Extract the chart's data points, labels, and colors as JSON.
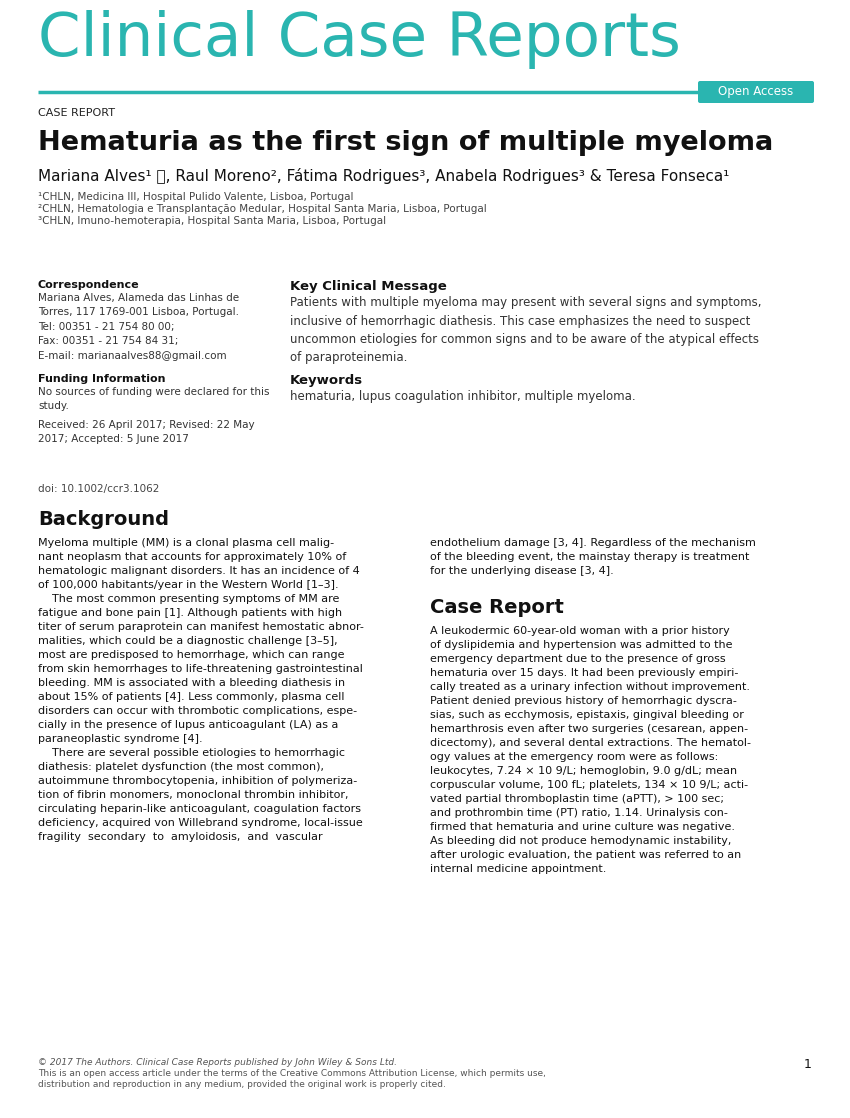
{
  "bg_color": "#ffffff",
  "teal_color": "#2ab5b0",
  "journal_title": "Clinical Case Reports",
  "case_report_label": "CASE REPORT",
  "article_title": "Hematuria as the first sign of multiple myeloma",
  "authors": "Mariana Alves¹ ⓘ, Raul Moreno², Fátima Rodrigues³, Anabela Rodrigues³ & Teresa Fonseca¹",
  "affil1": "¹CHLN, Medicina III, Hospital Pulido Valente, Lisboa, Portugal",
  "affil2": "²CHLN, Hematologia e Transplantação Medular, Hospital Santa Maria, Lisboa, Portugal",
  "affil3": "³CHLN, Imuno-hemoterapia, Hospital Santa Maria, Lisboa, Portugal",
  "corr_title": "Correspondence",
  "corr_body": "Mariana Alves, Alameda das Linhas de\nTorres, 117 1769-001 Lisboa, Portugal.\nTel: 00351 - 21 754 80 00;\nFax: 00351 - 21 754 84 31;\nE-mail: marianaalves88@gmail.com",
  "funding_title": "Funding Information",
  "funding_body": "No sources of funding were declared for this\nstudy.",
  "received_body": "Received: 26 April 2017; Revised: 22 May\n2017; Accepted: 5 June 2017",
  "key_msg_title": "Key Clinical Message",
  "key_msg_body": "Patients with multiple myeloma may present with several signs and symptoms,\ninclusive of hemorrhagic diathesis. This case emphasizes the need to suspect\nuncommon etiologies for common signs and to be aware of the atypical effects\nof paraproteinemia.",
  "keywords_title": "Keywords",
  "keywords_body": "hematuria, lupus coagulation inhibitor, multiple myeloma.",
  "doi_text": "doi: 10.1002/ccr3.1062",
  "bg_title": "Background",
  "bg_col1": "Myeloma multiple (MM) is a clonal plasma cell malig-\nnant neoplasm that accounts for approximately 10% of\nhematologic malignant disorders. It has an incidence of 4\nof 100,000 habitants/year in the Western World [1–3].\n    The most common presenting symptoms of MM are\nfatigue and bone pain [1]. Although patients with high\ntiter of serum paraprotein can manifest hemostatic abnor-\nmalities, which could be a diagnostic challenge [3–5],\nmost are predisposed to hemorrhage, which can range\nfrom skin hemorrhages to life-threatening gastrointestinal\nbleeding. MM is associated with a bleeding diathesis in\nabout 15% of patients [4]. Less commonly, plasma cell\ndisorders can occur with thrombotic complications, espe-\ncially in the presence of lupus anticoagulant (LA) as a\nparaneoplastic syndrome [4].\n    There are several possible etiologies to hemorrhagic\ndiathesis: platelet dysfunction (the most common),\nautoimmune thrombocytopenia, inhibition of polymeriza-\ntion of fibrin monomers, monoclonal thrombin inhibitor,\ncirculating heparin-like anticoagulant, coagulation factors\ndeficiency, acquired von Willebrand syndrome, local-issue\nfragility  secondary  to  amyloidosis,  and  vascular",
  "bg_col2_top": "endothelium damage [3, 4]. Regardless of the mechanism\nof the bleeding event, the mainstay therapy is treatment\nfor the underlying disease [3, 4].",
  "cr_title": "Case Report",
  "cr_body": "A leukodermic 60-year-old woman with a prior history\nof dyslipidemia and hypertension was admitted to the\nemergency department due to the presence of gross\nhematuria over 15 days. It had been previously empiri-\ncally treated as a urinary infection without improvement.\nPatient denied previous history of hemorrhagic dyscra-\nsias, such as ecchymosis, epistaxis, gingival bleeding or\nhemarthrosis even after two surgeries (cesarean, appen-\ndicectomy), and several dental extractions. The hematol-\nogy values at the emergency room were as follows:\nleukocytes, 7.24 × 10 9/L; hemoglobin, 9.0 g/dL; mean\ncorpuscular volume, 100 fL; platelets, 134 × 10 9/L; acti-\nvated partial thromboplastin time (aPTT), > 100 sec;\nand prothrombin time (PT) ratio, 1.14. Urinalysis con-\nfirmed that hematuria and urine culture was negative.\nAs bleeding did not produce hemodynamic instability,\nafter urologic evaluation, the patient was referred to an\ninternal medicine appointment.",
  "footer_line1": "© 2017 The Authors. Clinical Case Reports published by John Wiley & Sons Ltd.",
  "footer_line2": "This is an open access article under the terms of the Creative Commons Attribution License, which permits use,",
  "footer_line3": "distribution and reproduction in any medium, provided the original work is properly cited.",
  "page_num": "1",
  "open_access_label": "Open Access"
}
